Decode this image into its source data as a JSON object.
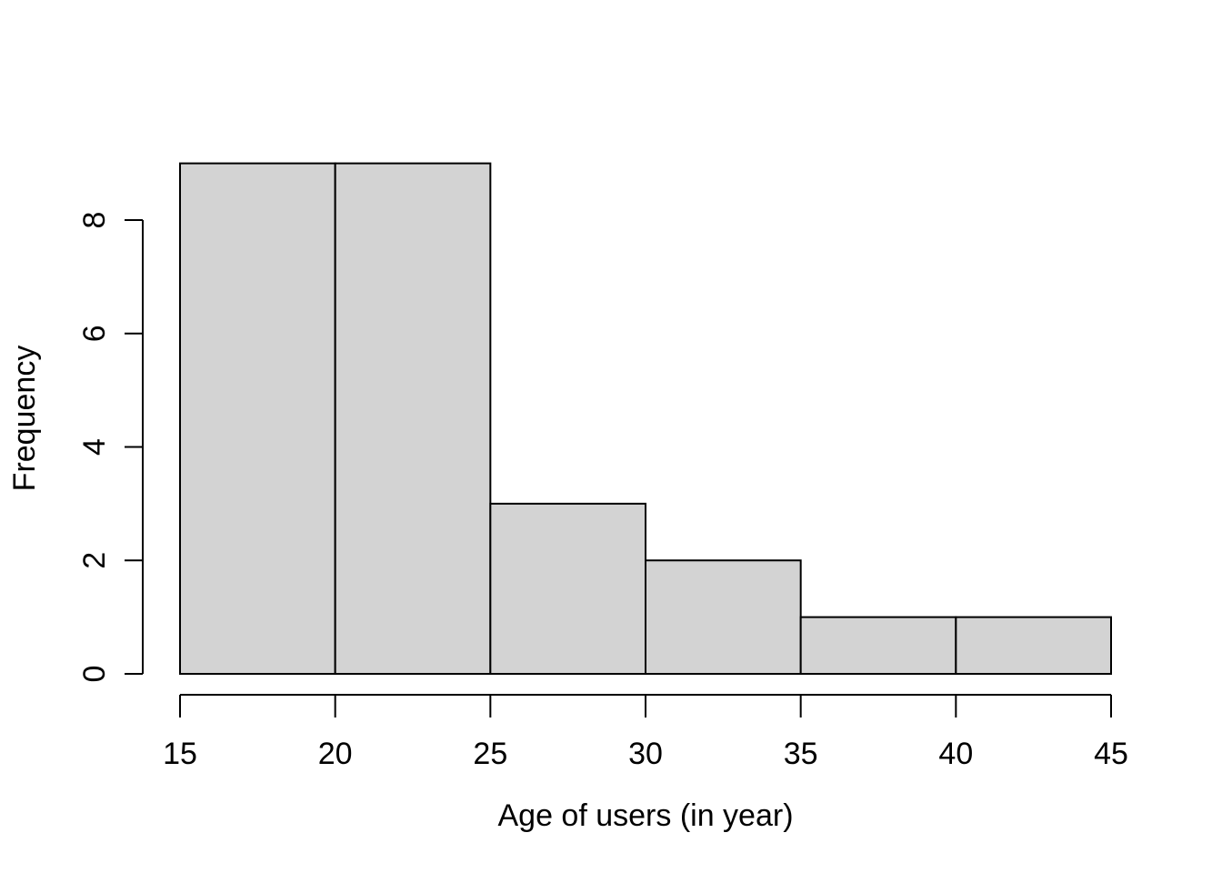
{
  "chart_data": {
    "type": "bar",
    "kind": "histogram",
    "title": "",
    "xlabel": "Age of users (in year)",
    "ylabel": "Frequency",
    "breaks": [
      15,
      20,
      25,
      30,
      35,
      40,
      45
    ],
    "values": [
      9,
      9,
      3,
      2,
      1,
      1
    ],
    "categories": [
      "15-20",
      "20-25",
      "25-30",
      "30-35",
      "35-40",
      "40-45"
    ],
    "x_ticks": [
      15,
      20,
      25,
      30,
      35,
      40,
      45
    ],
    "y_ticks": [
      0,
      2,
      4,
      6,
      8
    ],
    "xlim": [
      15,
      45
    ],
    "ylim": [
      0,
      8
    ],
    "grid": false,
    "legend": null,
    "colors": {
      "bar_fill": "#d3d3d3",
      "bar_border": "#000000",
      "axis": "#000000",
      "background": "#ffffff"
    }
  }
}
